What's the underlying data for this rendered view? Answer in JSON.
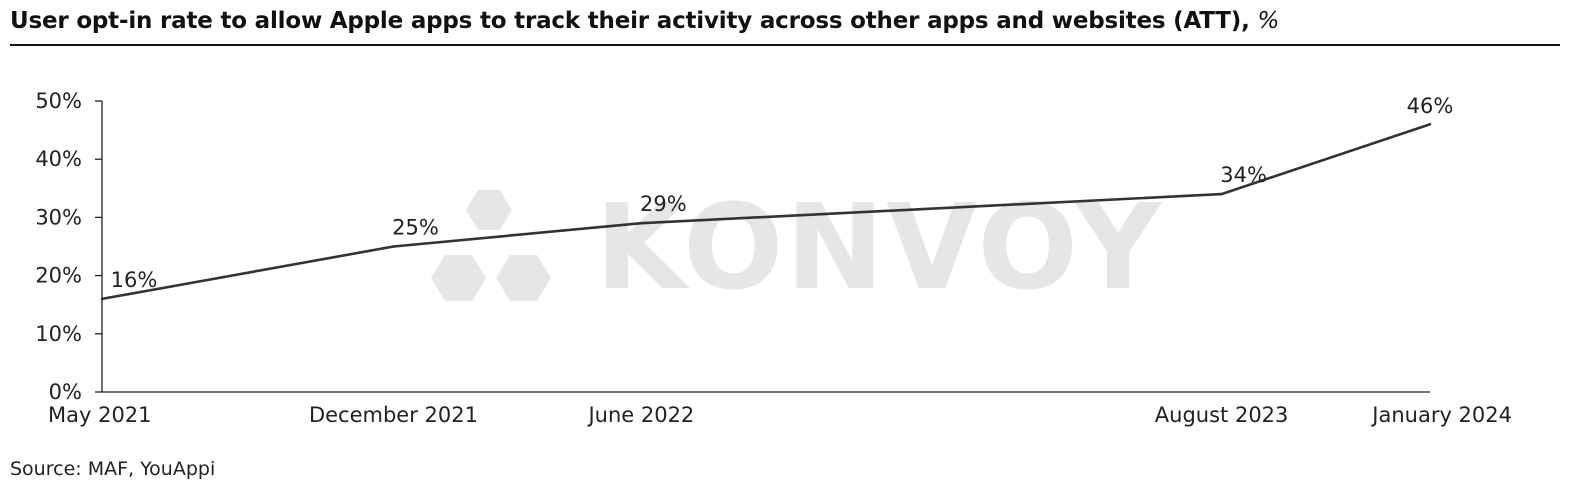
{
  "title": "User opt-in rate to allow Apple apps to track their activity across other apps and websites (ATT),",
  "title_unit": "%",
  "source": "Source: MAF, YouAppi",
  "watermark": "KONVOY",
  "colors": {
    "line": "#333333",
    "axis": "#222222",
    "watermark": "#e6e6e6"
  },
  "chart_data": {
    "type": "line",
    "x": [
      "May 2021",
      "December 2021",
      "June 2022",
      "August 2023",
      "January 2024"
    ],
    "x_dates": [
      "2021-05",
      "2021-12",
      "2022-06",
      "2023-08",
      "2024-01"
    ],
    "values": [
      16,
      25,
      29,
      34,
      46
    ],
    "data_labels": [
      "16%",
      "25%",
      "29%",
      "34%",
      "46%"
    ],
    "yticks": [
      0,
      10,
      20,
      30,
      40,
      50
    ],
    "ytick_labels": [
      "0%",
      "10%",
      "20%",
      "30%",
      "40%",
      "50%"
    ],
    "ylim": [
      0,
      50
    ],
    "grid": false,
    "legend": "none"
  }
}
